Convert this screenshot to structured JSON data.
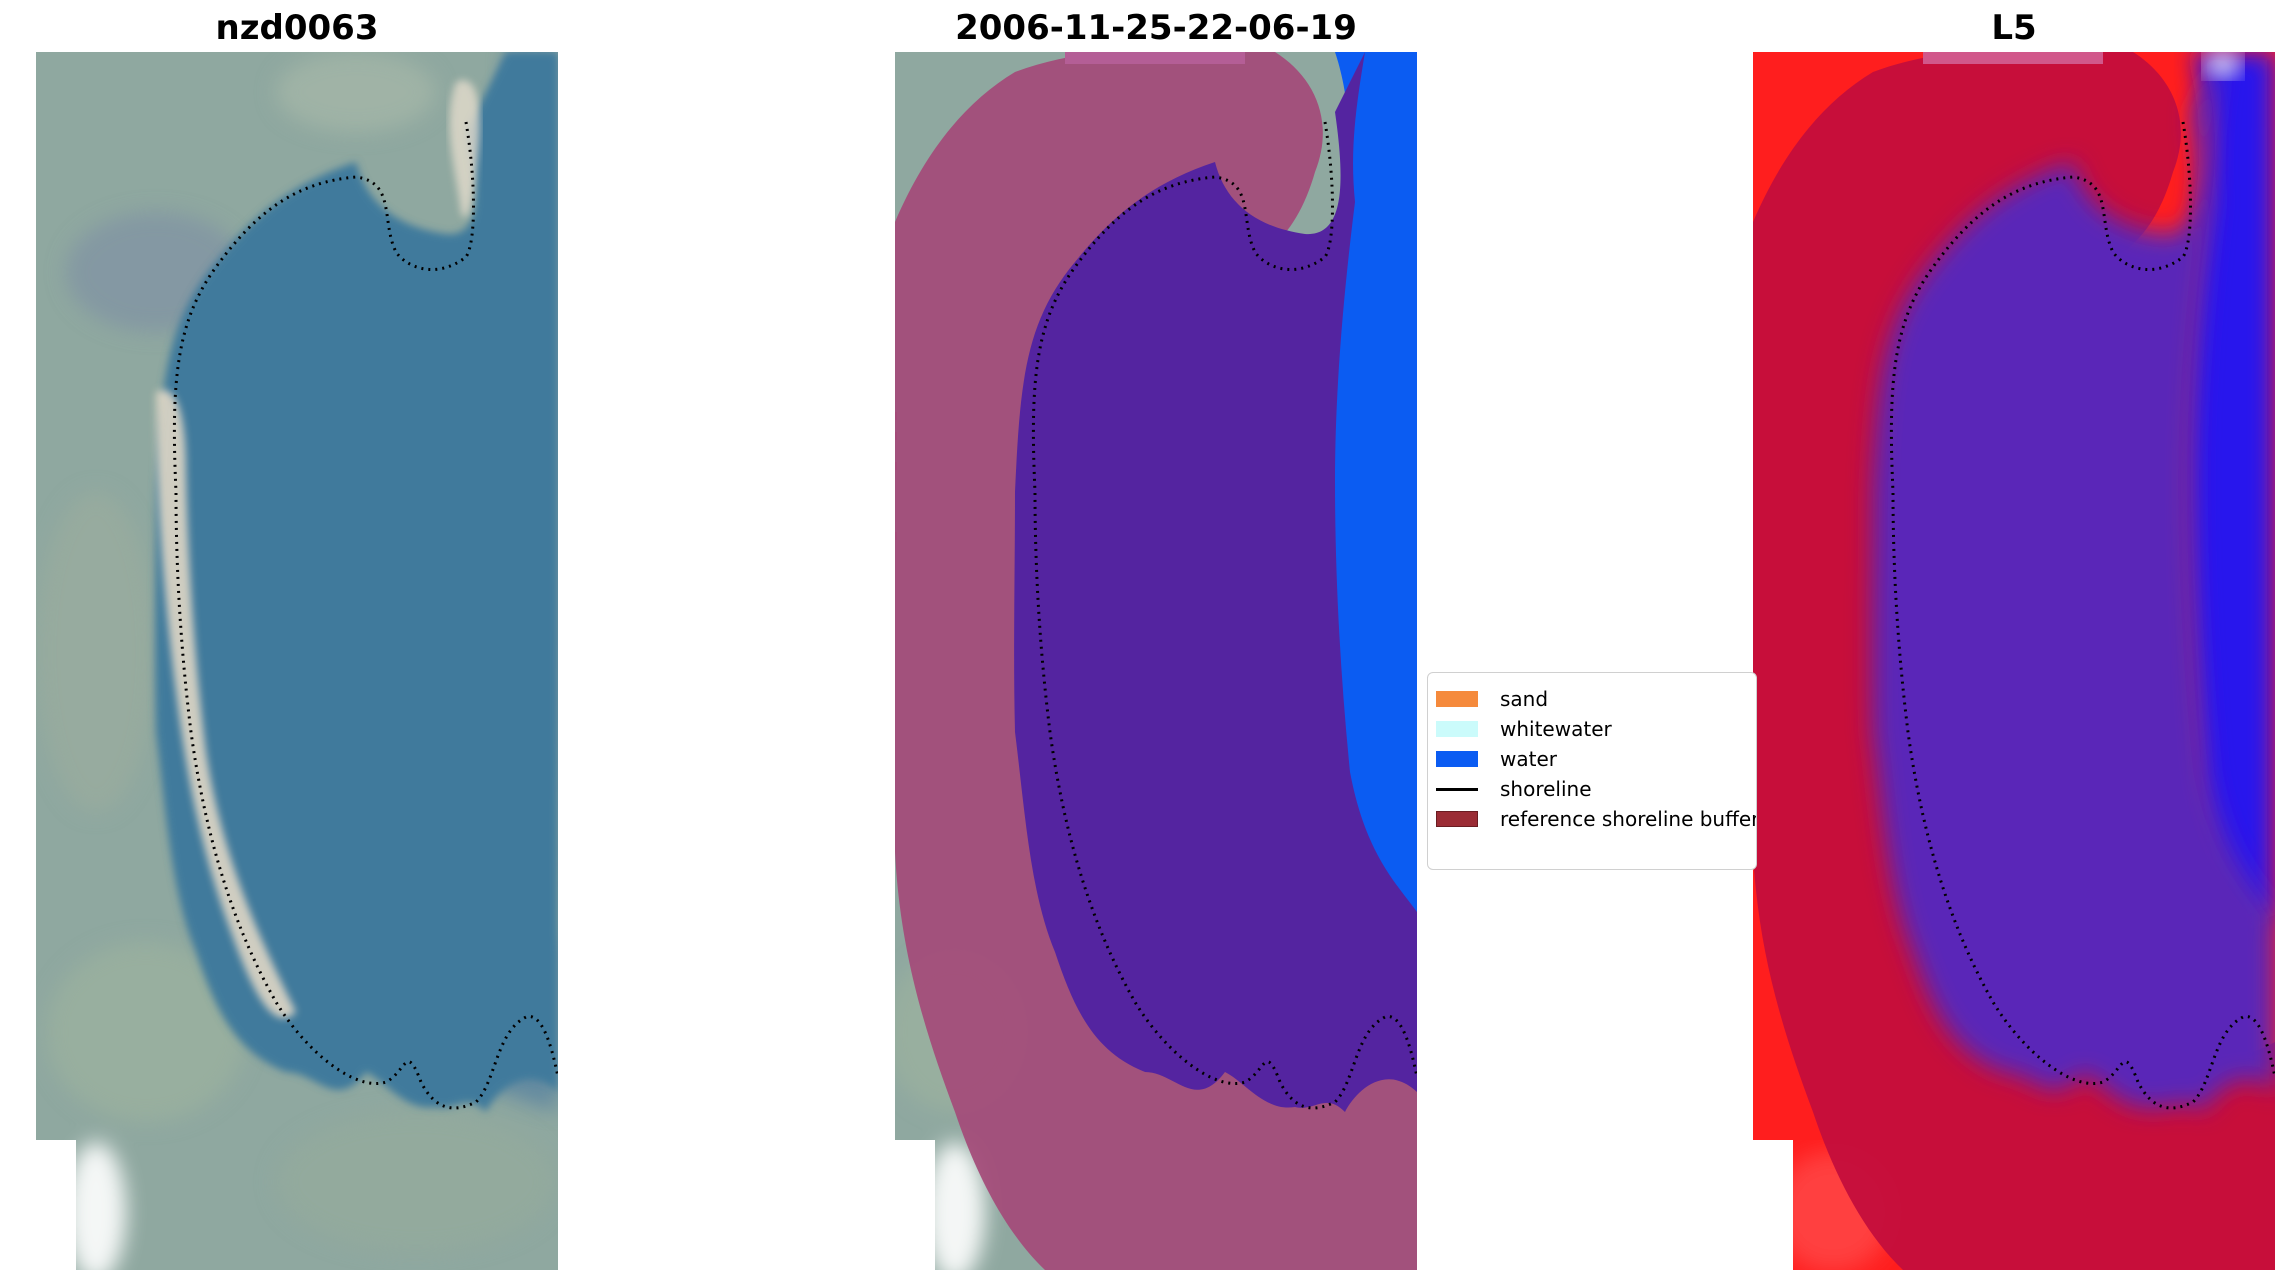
{
  "panels": [
    {
      "title": "nzd0063",
      "kind": "rgb-image"
    },
    {
      "title": "2006-11-25-22-06-19",
      "kind": "classified-overlay"
    },
    {
      "title": "L5",
      "kind": "index-overlay"
    }
  ],
  "legend": {
    "items": [
      {
        "label": "sand",
        "color": "#f58a3c",
        "type": "patch"
      },
      {
        "label": "whitewater",
        "color": "#cbfbfb",
        "type": "patch"
      },
      {
        "label": "water",
        "color": "#0b5cf2",
        "type": "patch"
      },
      {
        "label": "shoreline",
        "color": "#000000",
        "type": "line"
      },
      {
        "label": "reference shoreline buffer",
        "color": "#9b2c35",
        "type": "patch"
      }
    ]
  },
  "colors": {
    "land": "#8fa8a0",
    "lagoon": "#3f7a9c",
    "beach": "#e8dcc8",
    "buffer": "#a44a78",
    "classified_water": "#5424a0",
    "ocean_water": "#0b5cf2",
    "index_red": "#ff1e1e",
    "index_buffer": "#c40e3c",
    "index_water": "#5a26b8",
    "index_blue": "#1414ff"
  }
}
